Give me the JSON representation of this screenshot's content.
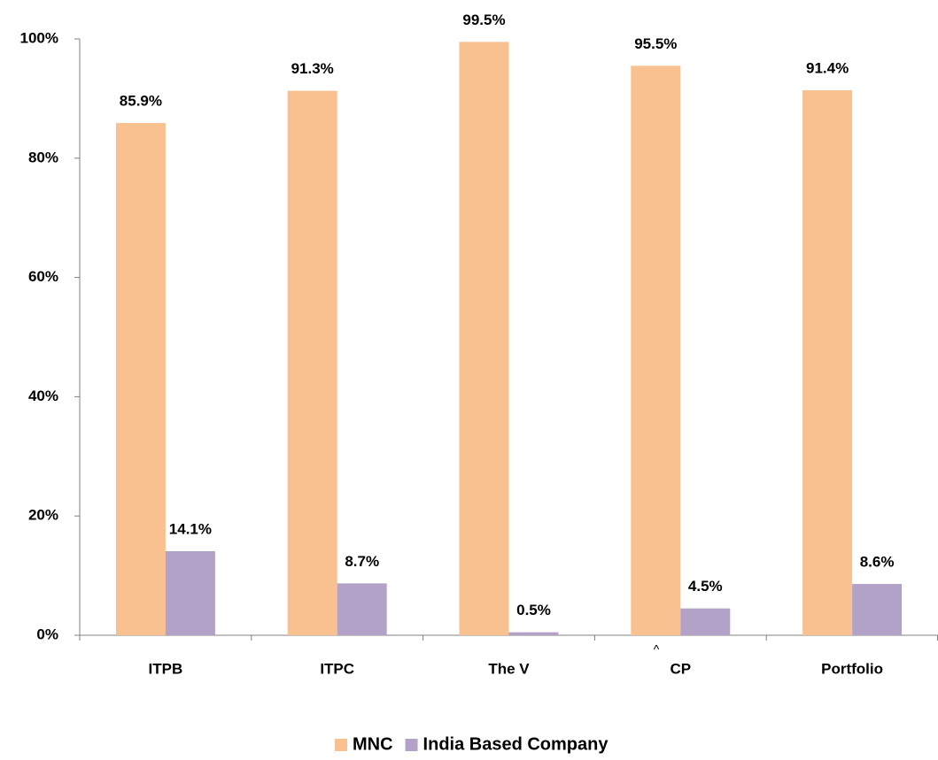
{
  "chart_data": {
    "type": "bar",
    "categories": [
      "ITPB",
      "ITPC",
      "The V",
      "CP",
      "Portfolio"
    ],
    "series": [
      {
        "name": "MNC",
        "color": "#f9c090",
        "values": [
          85.9,
          91.3,
          99.5,
          95.5,
          91.4
        ],
        "value_labels": [
          "85.9%",
          "91.3%",
          "99.5%",
          "95.5%",
          "91.4%"
        ]
      },
      {
        "name": "India Based Company",
        "color": "#b3a2c7",
        "values": [
          14.1,
          8.7,
          0.5,
          4.5,
          8.6
        ],
        "value_labels": [
          "14.1%",
          "8.7%",
          "0.5%",
          "4.5%",
          "8.6%"
        ]
      }
    ],
    "ylim": [
      0,
      100
    ],
    "yticks": [
      {
        "value": 0,
        "label": "0%"
      },
      {
        "value": 20,
        "label": "20%"
      },
      {
        "value": 40,
        "label": "40%"
      },
      {
        "value": 60,
        "label": "60%"
      },
      {
        "value": 80,
        "label": "80%"
      },
      {
        "value": 100,
        "label": "100%"
      }
    ],
    "legend": "bottom",
    "annotation": "^"
  }
}
